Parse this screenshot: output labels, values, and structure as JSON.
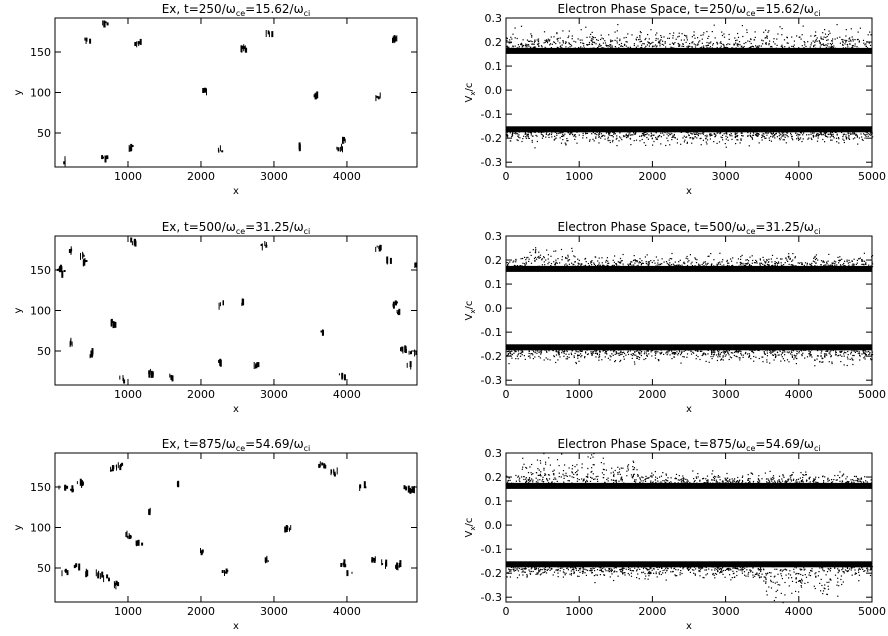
{
  "chart_data": [
    {
      "type": "scatter",
      "kind": "field-map",
      "title_main": "Ex, t=250/",
      "title_rest": "=15.62/",
      "omega1": "ω",
      "sub1": "ce",
      "omega2": "ω",
      "sub2": "ci",
      "xlabel": "x",
      "ylabel": "y",
      "xlim": [
        0,
        4960
      ],
      "ylim": [
        8,
        192
      ],
      "xticks": [
        1000,
        2000,
        3000,
        4000
      ],
      "yticks": [
        50,
        100,
        150
      ],
      "features": [
        {
          "x": 120,
          "y": 14
        },
        {
          "x": 430,
          "y": 164
        },
        {
          "x": 670,
          "y": 184
        },
        {
          "x": 680,
          "y": 20
        },
        {
          "x": 1020,
          "y": 32
        },
        {
          "x": 1130,
          "y": 160
        },
        {
          "x": 2050,
          "y": 102
        },
        {
          "x": 2260,
          "y": 30
        },
        {
          "x": 2580,
          "y": 154
        },
        {
          "x": 2920,
          "y": 172
        },
        {
          "x": 3340,
          "y": 31
        },
        {
          "x": 3550,
          "y": 97
        },
        {
          "x": 3870,
          "y": 31
        },
        {
          "x": 3960,
          "y": 40
        },
        {
          "x": 4420,
          "y": 94
        },
        {
          "x": 4630,
          "y": 165
        }
      ]
    },
    {
      "type": "scatter",
      "kind": "phase-space",
      "title_main": "Electron Phase Space, t=250/",
      "title_rest": "=15.62/",
      "omega1": "ω",
      "sub1": "ce",
      "omega2": "ω",
      "sub2": "ci",
      "xlabel": "x",
      "ylabel_main": "V",
      "ylabel_sub": "x",
      "ylabel_rest": "/c",
      "xlim": [
        0,
        5000
      ],
      "ylim": [
        -0.32,
        0.3
      ],
      "xticks": [
        0,
        1000,
        2000,
        3000,
        4000,
        5000
      ],
      "yticks": [
        -0.3,
        -0.2,
        -0.1,
        0.0,
        0.1,
        0.2,
        0.3
      ],
      "band_core": 0.163,
      "spread_x_ranges": [
        [
          0,
          5000,
          0.25
        ]
      ]
    },
    {
      "type": "scatter",
      "kind": "field-map",
      "title_main": "Ex, t=500/",
      "title_rest": "=31.25/",
      "omega1": "ω",
      "sub1": "ce",
      "omega2": "ω",
      "sub2": "ci",
      "xlabel": "x",
      "ylabel": "y",
      "xlim": [
        0,
        4960
      ],
      "ylim": [
        8,
        192
      ],
      "xticks": [
        1000,
        2000,
        3000,
        4000
      ],
      "yticks": [
        50,
        100,
        150
      ],
      "features": [
        {
          "x": 60,
          "y": 150
        },
        {
          "x": 90,
          "y": 148
        },
        {
          "x": 200,
          "y": 174
        },
        {
          "x": 360,
          "y": 168
        },
        {
          "x": 390,
          "y": 160
        },
        {
          "x": 240,
          "y": 60
        },
        {
          "x": 480,
          "y": 46
        },
        {
          "x": 780,
          "y": 84
        },
        {
          "x": 920,
          "y": 14
        },
        {
          "x": 1070,
          "y": 184
        },
        {
          "x": 1290,
          "y": 22
        },
        {
          "x": 1600,
          "y": 16
        },
        {
          "x": 2260,
          "y": 36
        },
        {
          "x": 2300,
          "y": 108
        },
        {
          "x": 2540,
          "y": 110
        },
        {
          "x": 2760,
          "y": 34
        },
        {
          "x": 2860,
          "y": 180
        },
        {
          "x": 3690,
          "y": 72
        },
        {
          "x": 3930,
          "y": 18
        },
        {
          "x": 4430,
          "y": 178
        },
        {
          "x": 4560,
          "y": 162
        },
        {
          "x": 4650,
          "y": 108
        },
        {
          "x": 4700,
          "y": 98
        },
        {
          "x": 4780,
          "y": 52
        },
        {
          "x": 4850,
          "y": 34
        },
        {
          "x": 4900,
          "y": 48
        },
        {
          "x": 4930,
          "y": 155
        }
      ]
    },
    {
      "type": "scatter",
      "kind": "phase-space",
      "title_main": "Electron Phase Space, t=500/",
      "title_rest": "=31.25/",
      "omega1": "ω",
      "sub1": "ce",
      "omega2": "ω",
      "sub2": "ci",
      "xlabel": "x",
      "ylabel_main": "V",
      "ylabel_sub": "x",
      "ylabel_rest": "/c",
      "xlim": [
        0,
        5000
      ],
      "ylim": [
        -0.32,
        0.3
      ],
      "xticks": [
        0,
        1000,
        2000,
        3000,
        4000,
        5000
      ],
      "yticks": [
        -0.3,
        -0.2,
        -0.1,
        0.0,
        0.1,
        0.2,
        0.3
      ],
      "band_core": 0.163,
      "spread_x_ranges": [
        [
          300,
          900,
          0.26
        ],
        [
          4100,
          4900,
          -0.22
        ]
      ]
    },
    {
      "type": "scatter",
      "kind": "field-map",
      "title_main": "Ex, t=875/",
      "title_rest": "=54.69/",
      "omega1": "ω",
      "sub1": "ce",
      "omega2": "ω",
      "sub2": "ci",
      "xlabel": "x",
      "ylabel": "y",
      "xlim": [
        0,
        4960
      ],
      "ylim": [
        8,
        192
      ],
      "xticks": [
        1000,
        2000,
        3000,
        4000
      ],
      "yticks": [
        50,
        100,
        150
      ],
      "features": [
        {
          "x": 120,
          "y": 150
        },
        {
          "x": 220,
          "y": 148
        },
        {
          "x": 320,
          "y": 156
        },
        {
          "x": 140,
          "y": 46
        },
        {
          "x": 280,
          "y": 52
        },
        {
          "x": 420,
          "y": 44
        },
        {
          "x": 600,
          "y": 42
        },
        {
          "x": 700,
          "y": 36
        },
        {
          "x": 820,
          "y": 30
        },
        {
          "x": 760,
          "y": 172
        },
        {
          "x": 880,
          "y": 176
        },
        {
          "x": 1010,
          "y": 90
        },
        {
          "x": 1150,
          "y": 80
        },
        {
          "x": 1290,
          "y": 120
        },
        {
          "x": 1700,
          "y": 152
        },
        {
          "x": 2020,
          "y": 70
        },
        {
          "x": 2330,
          "y": 46
        },
        {
          "x": 2900,
          "y": 60
        },
        {
          "x": 3200,
          "y": 98
        },
        {
          "x": 3650,
          "y": 176
        },
        {
          "x": 3800,
          "y": 168
        },
        {
          "x": 3940,
          "y": 54
        },
        {
          "x": 4040,
          "y": 44
        },
        {
          "x": 4200,
          "y": 150
        },
        {
          "x": 4360,
          "y": 60
        },
        {
          "x": 4520,
          "y": 54
        },
        {
          "x": 4680,
          "y": 52
        },
        {
          "x": 4830,
          "y": 148
        },
        {
          "x": 4900,
          "y": 146
        }
      ]
    },
    {
      "type": "scatter",
      "kind": "phase-space",
      "title_main": "Electron Phase Space, t=875/",
      "title_rest": "=54.69/",
      "omega1": "ω",
      "sub1": "ce",
      "omega2": "ω",
      "sub2": "ci",
      "xlabel": "x",
      "ylabel_main": "V",
      "ylabel_sub": "x",
      "ylabel_rest": "/c",
      "xlim": [
        0,
        5000
      ],
      "ylim": [
        -0.32,
        0.3
      ],
      "xticks": [
        0,
        1000,
        2000,
        3000,
        4000,
        5000
      ],
      "yticks": [
        -0.3,
        -0.2,
        -0.1,
        0.0,
        0.1,
        0.2,
        0.3
      ],
      "band_core": 0.163,
      "spread_x_ranges": [
        [
          200,
          1800,
          0.29
        ],
        [
          3500,
          4600,
          -0.3
        ]
      ]
    }
  ]
}
